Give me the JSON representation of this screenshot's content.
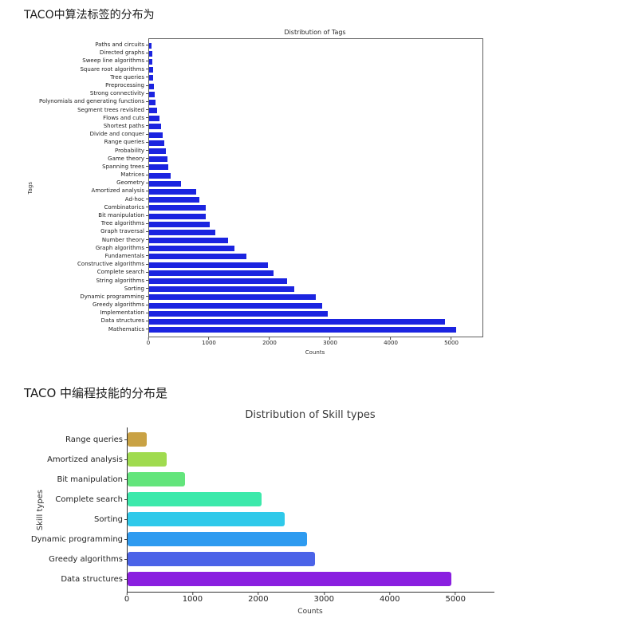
{
  "headings": {
    "tags": "TACO中算法标签的分布为",
    "skills": "TACO 中编程技能的分布是"
  },
  "chart_data": [
    {
      "type": "bar",
      "orientation": "horizontal",
      "title": "Distribution of Tags",
      "xlabel": "Counts",
      "ylabel": "Tags",
      "xlim": [
        0,
        5500
      ],
      "xticks": [
        0,
        1000,
        2000,
        3000,
        4000,
        5000
      ],
      "grid": false,
      "bar_color": "#1b24e0",
      "categories": [
        "Paths and circuits",
        "Directed graphs",
        "Sweep line algorithms",
        "Square root algorithms",
        "Tree queries",
        "Preprocessing",
        "Strong connectivity",
        "Polynomials and generating functions",
        "Segment trees revisited",
        "Flows and cuts",
        "Shortest paths",
        "Divide and conquer",
        "Range queries",
        "Probability",
        "Game theory",
        "Spanning trees",
        "Matrices",
        "Geometry",
        "Amortized analysis",
        "Ad-hoc",
        "Combinatorics",
        "Bit manipulation",
        "Tree algorithms",
        "Graph traversal",
        "Number theory",
        "Graph algorithms",
        "Fundamentals",
        "Constructive algorithms",
        "Complete search",
        "String algorithms",
        "Sorting",
        "Dynamic programming",
        "Greedy algorithms",
        "Implementation",
        "Data structures",
        "Mathematics"
      ],
      "values": [
        40,
        50,
        55,
        65,
        70,
        85,
        95,
        110,
        135,
        170,
        200,
        220,
        250,
        270,
        300,
        320,
        350,
        530,
        780,
        830,
        930,
        940,
        1000,
        1090,
        1300,
        1410,
        1600,
        1960,
        2050,
        2280,
        2390,
        2750,
        2850,
        2950,
        4880,
        5060
      ]
    },
    {
      "type": "bar",
      "orientation": "horizontal",
      "title": "Distribution of Skill types",
      "xlabel": "Counts",
      "ylabel": "Skill types",
      "xlim": [
        0,
        5580
      ],
      "xticks": [
        0,
        1000,
        2000,
        3000,
        4000,
        5000
      ],
      "grid": false,
      "categories": [
        "Range queries",
        "Amortized analysis",
        "Bit manipulation",
        "Complete search",
        "Sorting",
        "Dynamic programming",
        "Greedy algorithms",
        "Data structures"
      ],
      "values": [
        290,
        600,
        870,
        2040,
        2390,
        2730,
        2850,
        4930
      ],
      "bar_colors": [
        "#c9a244",
        "#a0db4f",
        "#63e57c",
        "#3ce9ab",
        "#2fc9ea",
        "#2e9bf0",
        "#4b63e8",
        "#8a1fe0"
      ]
    }
  ]
}
